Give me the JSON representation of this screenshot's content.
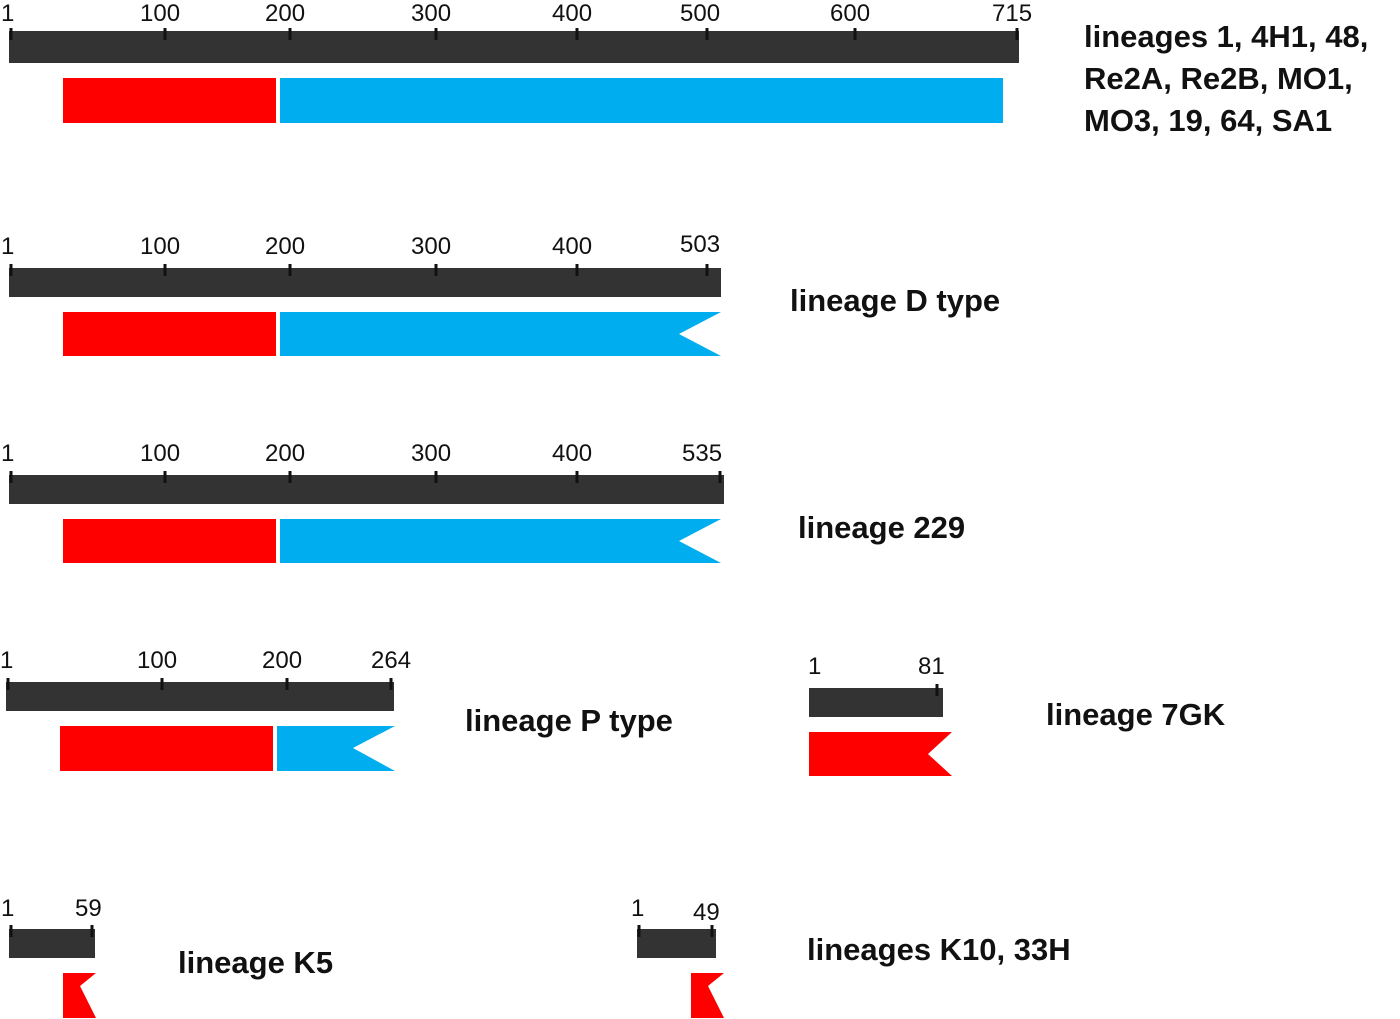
{
  "colors": {
    "bar": "#333333",
    "red_domain": "#ff0000",
    "blue_domain": "#00aeef",
    "tick": "#111111"
  },
  "proteins": [
    {
      "id": "lineages-1",
      "length": 715,
      "ticks": [
        "1",
        "100",
        "200",
        "300",
        "400",
        "500",
        "600",
        "715"
      ],
      "label_lines": [
        "lineages 1, 4H1, 48,",
        "Re2A, Re2B, MO1,",
        "MO3, 19, 64, SA1"
      ],
      "domains": [
        {
          "type": "red",
          "truncated": false
        },
        {
          "type": "blue",
          "truncated": false
        }
      ]
    },
    {
      "id": "lineage-d",
      "length": 503,
      "ticks": [
        "1",
        "100",
        "200",
        "300",
        "400",
        "503"
      ],
      "label_lines": [
        "lineage D type"
      ],
      "domains": [
        {
          "type": "red",
          "truncated": false
        },
        {
          "type": "blue",
          "truncated": true
        }
      ]
    },
    {
      "id": "lineage-229",
      "length": 535,
      "ticks": [
        "1",
        "100",
        "200",
        "300",
        "400",
        "535"
      ],
      "label_lines": [
        "lineage 229"
      ],
      "domains": [
        {
          "type": "red",
          "truncated": false
        },
        {
          "type": "blue",
          "truncated": true
        }
      ]
    },
    {
      "id": "lineage-p",
      "length": 264,
      "ticks": [
        "1",
        "100",
        "200",
        "264"
      ],
      "label_lines": [
        "lineage P type"
      ],
      "domains": [
        {
          "type": "red",
          "truncated": false
        },
        {
          "type": "blue",
          "truncated": true
        }
      ]
    },
    {
      "id": "lineage-7gk",
      "length": 81,
      "ticks": [
        "1",
        "81"
      ],
      "label_lines": [
        "lineage 7GK"
      ],
      "domains": [
        {
          "type": "red",
          "truncated": true
        }
      ]
    },
    {
      "id": "lineage-k5",
      "length": 59,
      "ticks": [
        "1",
        "59"
      ],
      "label_lines": [
        "lineage K5"
      ],
      "domains": [
        {
          "type": "red",
          "truncated": true
        }
      ]
    },
    {
      "id": "lineages-k10",
      "length": 49,
      "ticks": [
        "1",
        "49"
      ],
      "label_lines": [
        "lineages K10, 33H"
      ],
      "domains": [
        {
          "type": "red",
          "truncated": true
        }
      ]
    }
  ]
}
